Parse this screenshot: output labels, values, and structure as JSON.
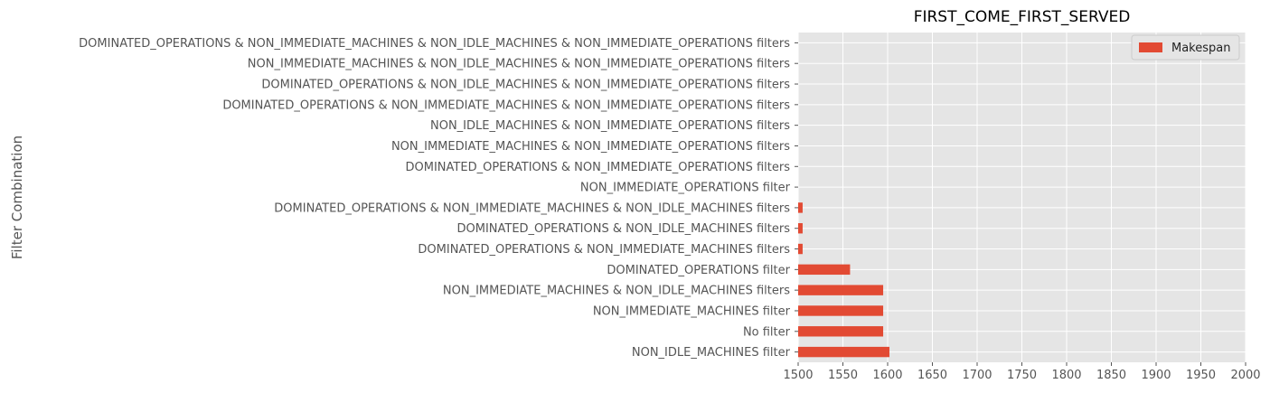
{
  "chart_data": {
    "type": "bar",
    "orientation": "horizontal",
    "title": "FIRST_COME_FIRST_SERVED",
    "xlabel": "",
    "ylabel": "Filter Combination",
    "xlim": [
      1500,
      2000
    ],
    "xticks": [
      "1500",
      "1550",
      "1600",
      "1650",
      "1700",
      "1750",
      "1800",
      "1850",
      "1900",
      "1950",
      "2000"
    ],
    "grid": true,
    "legend_position": "top-right",
    "categories": [
      "NON_IDLE_MACHINES filter",
      "No filter",
      "NON_IMMEDIATE_MACHINES filter",
      "NON_IMMEDIATE_MACHINES & NON_IDLE_MACHINES filters",
      "DOMINATED_OPERATIONS filter",
      "DOMINATED_OPERATIONS & NON_IMMEDIATE_MACHINES filters",
      "DOMINATED_OPERATIONS & NON_IDLE_MACHINES filters",
      "DOMINATED_OPERATIONS & NON_IMMEDIATE_MACHINES & NON_IDLE_MACHINES filters",
      "NON_IMMEDIATE_OPERATIONS filter",
      "DOMINATED_OPERATIONS & NON_IMMEDIATE_OPERATIONS filters",
      "NON_IMMEDIATE_MACHINES & NON_IMMEDIATE_OPERATIONS filters",
      "NON_IDLE_MACHINES & NON_IMMEDIATE_OPERATIONS filters",
      "DOMINATED_OPERATIONS & NON_IMMEDIATE_MACHINES & NON_IMMEDIATE_OPERATIONS filters",
      "DOMINATED_OPERATIONS & NON_IDLE_MACHINES & NON_IMMEDIATE_OPERATIONS filters",
      "NON_IMMEDIATE_MACHINES & NON_IDLE_MACHINES & NON_IMMEDIATE_OPERATIONS filters",
      "DOMINATED_OPERATIONS & NON_IMMEDIATE_MACHINES & NON_IDLE_MACHINES & NON_IMMEDIATE_OPERATIONS filters"
    ],
    "series": [
      {
        "name": "Makespan",
        "color": "#E24A33",
        "values": [
          1602,
          1595,
          1595,
          1595,
          1558,
          1505,
          1505,
          1505,
          1500,
          1500,
          1500,
          1500,
          1500,
          1500,
          1500,
          1500
        ]
      }
    ]
  },
  "colors": {
    "plot_background": "#E5E5E5",
    "grid": "#FFFFFF",
    "bar": "#E24A33"
  }
}
